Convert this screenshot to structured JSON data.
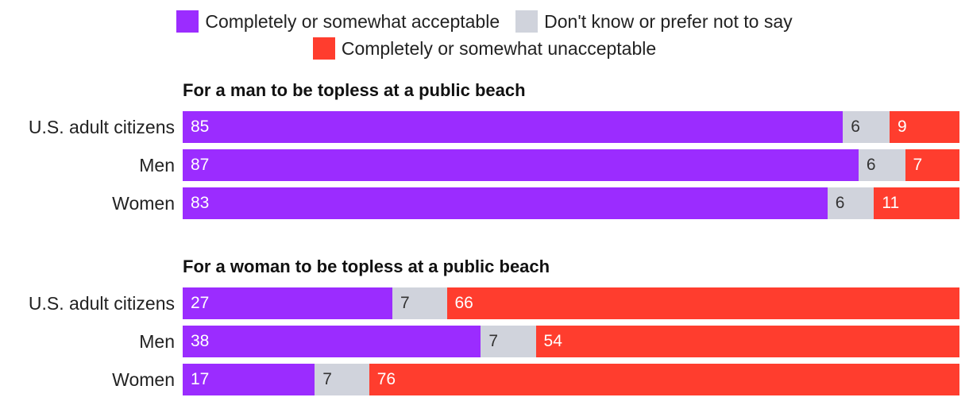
{
  "colors": {
    "acceptable": "#9b2cff",
    "dont_know": "#d0d3dc",
    "unacceptable": "#ff3d2e"
  },
  "legend": [
    {
      "key": "acceptable",
      "label": "Completely or somewhat acceptable"
    },
    {
      "key": "dont_know",
      "label": "Don't know or prefer not to say"
    },
    {
      "key": "unacceptable",
      "label": "Completely or somewhat unacceptable"
    }
  ],
  "chart_data": [
    {
      "type": "bar",
      "stacked": true,
      "orientation": "horizontal",
      "title": "For a man to be topless at a public beach",
      "categories": [
        "U.S. adult citizens",
        "Men",
        "Women"
      ],
      "series": [
        {
          "name": "Completely or somewhat acceptable",
          "values": [
            85,
            87,
            83
          ]
        },
        {
          "name": "Don't know or prefer not to say",
          "values": [
            6,
            6,
            6
          ]
        },
        {
          "name": "Completely or somewhat unacceptable",
          "values": [
            9,
            7,
            11
          ]
        }
      ]
    },
    {
      "type": "bar",
      "stacked": true,
      "orientation": "horizontal",
      "title": "For a woman to be topless at a public beach",
      "categories": [
        "U.S. adult citizens",
        "Men",
        "Women"
      ],
      "series": [
        {
          "name": "Completely or somewhat acceptable",
          "values": [
            27,
            38,
            17
          ]
        },
        {
          "name": "Don't know or prefer not to say",
          "values": [
            7,
            7,
            7
          ]
        },
        {
          "name": "Completely or somewhat unacceptable",
          "values": [
            66,
            54,
            76
          ]
        }
      ]
    }
  ]
}
